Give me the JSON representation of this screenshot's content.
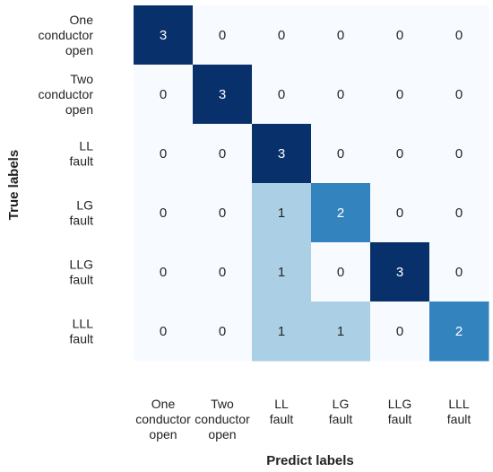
{
  "chart_data": {
    "type": "heatmap",
    "title": "",
    "xlabel": "Predict labels",
    "ylabel": "True labels",
    "row_labels": [
      [
        "One",
        "conductor",
        "open"
      ],
      [
        "Two",
        "conductor",
        "open"
      ],
      [
        "LL",
        "fault"
      ],
      [
        "LG",
        "fault"
      ],
      [
        "LLG",
        "fault"
      ],
      [
        "LLL",
        "fault"
      ]
    ],
    "col_labels": [
      [
        "One",
        "conductor",
        "open"
      ],
      [
        "Two",
        "conductor",
        "open"
      ],
      [
        "LL",
        "fault"
      ],
      [
        "LG",
        "fault"
      ],
      [
        "LLG",
        "fault"
      ],
      [
        "LLL",
        "fault"
      ]
    ],
    "matrix": [
      [
        3,
        0,
        0,
        0,
        0,
        0
      ],
      [
        0,
        3,
        0,
        0,
        0,
        0
      ],
      [
        0,
        0,
        3,
        0,
        0,
        0
      ],
      [
        0,
        0,
        1,
        2,
        0,
        0
      ],
      [
        0,
        0,
        1,
        0,
        3,
        0
      ],
      [
        0,
        0,
        1,
        1,
        0,
        2
      ]
    ],
    "value_range": [
      0,
      3
    ],
    "colormap": "Blues",
    "colors": {
      "0": "#f7fbff",
      "1": "#abd0e6",
      "2": "#3383be",
      "3": "#08306b"
    },
    "colorbar": false,
    "grid": false
  }
}
